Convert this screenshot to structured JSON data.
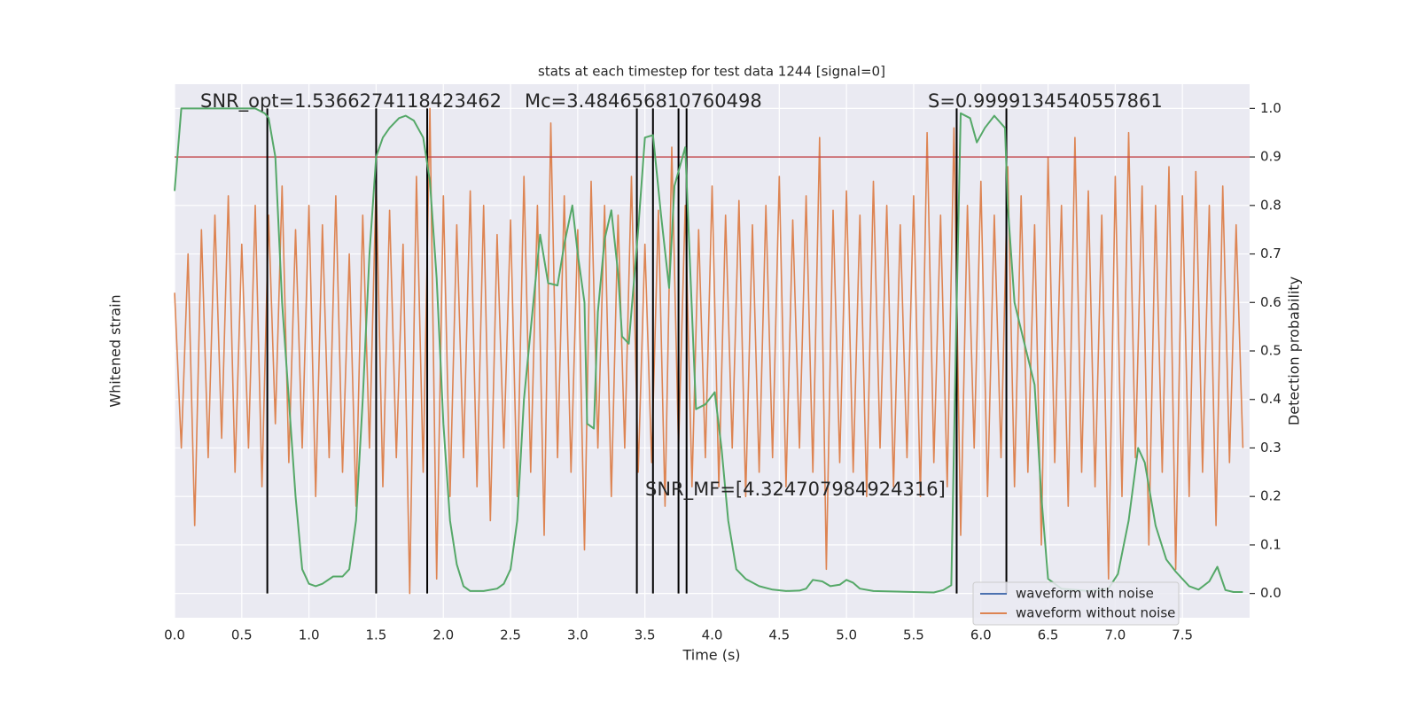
{
  "chart_data": {
    "type": "line",
    "title": "stats at each timestep for test data 1244 [signal=0]",
    "x_label": "Time (s)",
    "y_label": "Whitened strain",
    "y2_label": "Detection probability",
    "xlim": [
      0,
      8
    ],
    "ylim": [
      -0.05,
      1.05
    ],
    "xticks": [
      {
        "value": 0,
        "label": "0.0"
      },
      {
        "value": 0.5,
        "label": "0.5"
      },
      {
        "value": 1,
        "label": "1.0"
      },
      {
        "value": 1.5,
        "label": "1.5"
      },
      {
        "value": 2,
        "label": "2.0"
      },
      {
        "value": 2.5,
        "label": "2.5"
      },
      {
        "value": 3,
        "label": "3.0"
      },
      {
        "value": 3.5,
        "label": "3.5"
      },
      {
        "value": 4,
        "label": "4.0"
      },
      {
        "value": 4.5,
        "label": "4.5"
      },
      {
        "value": 5,
        "label": "5.0"
      },
      {
        "value": 5.5,
        "label": "5.5"
      },
      {
        "value": 6,
        "label": "6.0"
      },
      {
        "value": 6.5,
        "label": "6.5"
      },
      {
        "value": 7,
        "label": "7.0"
      },
      {
        "value": 7.5,
        "label": "7.5"
      }
    ],
    "yticks": [
      {
        "value": 0,
        "label": "0.0"
      },
      {
        "value": 0.1,
        "label": "0.1"
      },
      {
        "value": 0.2,
        "label": "0.2"
      },
      {
        "value": 0.3,
        "label": "0.3"
      },
      {
        "value": 0.4,
        "label": "0.4"
      },
      {
        "value": 0.5,
        "label": "0.5"
      },
      {
        "value": 0.6,
        "label": "0.6"
      },
      {
        "value": 0.7,
        "label": "0.7"
      },
      {
        "value": 0.8,
        "label": "0.8"
      },
      {
        "value": 0.9,
        "label": "0.9"
      },
      {
        "value": 1,
        "label": "1.0"
      }
    ],
    "grid": true,
    "legend": "lower right",
    "annotations": [
      "SNR_opt=1.5366274118423462",
      "Mc=3.484656810760498",
      "S=0.9999134540557861",
      "SNR_MF=[4.324707984924316]"
    ],
    "hline": 0.9,
    "hline_color": "#c44e52",
    "vlines": [
      0.69,
      1.5,
      1.88,
      3.44,
      3.56,
      3.75,
      3.81,
      5.82,
      6.19
    ],
    "vline_range": [
      0,
      1
    ],
    "vline_color": "#000000",
    "series": [
      {
        "name": "waveform with noise",
        "color": "#4c72b0",
        "x": [],
        "values": []
      },
      {
        "name": "waveform without noise",
        "color": "#dd8452",
        "x": [
          0,
          0.05,
          0.1,
          0.15,
          0.2,
          0.25,
          0.3,
          0.35,
          0.4,
          0.45,
          0.5,
          0.55,
          0.6,
          0.65,
          0.7,
          0.75,
          0.8,
          0.85,
          0.9,
          0.95,
          1,
          1.05,
          1.1,
          1.15,
          1.2,
          1.25,
          1.3,
          1.35,
          1.4,
          1.45,
          1.5,
          1.55,
          1.6,
          1.65,
          1.7,
          1.75,
          1.8,
          1.85,
          1.9,
          1.95,
          2,
          2.05,
          2.1,
          2.15,
          2.2,
          2.25,
          2.3,
          2.35,
          2.4,
          2.45,
          2.5,
          2.55,
          2.6,
          2.65,
          2.7,
          2.75,
          2.8,
          2.85,
          2.9,
          2.95,
          3,
          3.05,
          3.1,
          3.15,
          3.2,
          3.25,
          3.3,
          3.35,
          3.4,
          3.45,
          3.5,
          3.55,
          3.6,
          3.65,
          3.7,
          3.75,
          3.8,
          3.85,
          3.9,
          3.95,
          4,
          4.05,
          4.1,
          4.15,
          4.2,
          4.25,
          4.3,
          4.35,
          4.4,
          4.45,
          4.5,
          4.55,
          4.6,
          4.65,
          4.7,
          4.75,
          4.8,
          4.85,
          4.9,
          4.95,
          5,
          5.05,
          5.1,
          5.15,
          5.2,
          5.25,
          5.3,
          5.35,
          5.4,
          5.45,
          5.5,
          5.55,
          5.6,
          5.65,
          5.7,
          5.75,
          5.8,
          5.85,
          5.9,
          5.95,
          6,
          6.05,
          6.1,
          6.15,
          6.2,
          6.25,
          6.3,
          6.35,
          6.4,
          6.45,
          6.5,
          6.55,
          6.6,
          6.65,
          6.7,
          6.75,
          6.8,
          6.85,
          6.9,
          6.95,
          7,
          7.05,
          7.1,
          7.15,
          7.2,
          7.25,
          7.3,
          7.35,
          7.4,
          7.45,
          7.5,
          7.55,
          7.6,
          7.65,
          7.7,
          7.75,
          7.8,
          7.85,
          7.9,
          7.95
        ],
        "values": [
          0.62,
          0.3,
          0.7,
          0.14,
          0.75,
          0.28,
          0.78,
          0.32,
          0.82,
          0.25,
          0.72,
          0.3,
          0.8,
          0.22,
          0.78,
          0.35,
          0.84,
          0.27,
          0.75,
          0.3,
          0.8,
          0.2,
          0.76,
          0.28,
          0.82,
          0.25,
          0.7,
          0.18,
          0.78,
          0.3,
          0.85,
          0.22,
          0.79,
          0.28,
          0.72,
          0.0,
          0.86,
          0.25,
          1.0,
          0.03,
          0.82,
          0.2,
          0.76,
          0.28,
          0.83,
          0.22,
          0.8,
          0.15,
          0.74,
          0.3,
          0.77,
          0.2,
          0.86,
          0.25,
          0.8,
          0.12,
          0.97,
          0.28,
          0.82,
          0.25,
          0.75,
          0.09,
          0.85,
          0.3,
          0.8,
          0.2,
          0.78,
          0.3,
          0.86,
          0.25,
          0.72,
          0.27,
          0.79,
          0.18,
          0.92,
          0.3,
          0.8,
          0.22,
          0.75,
          0.28,
          0.84,
          0.22,
          0.78,
          0.3,
          0.81,
          0.2,
          0.76,
          0.25,
          0.8,
          0.28,
          0.86,
          0.22,
          0.77,
          0.3,
          0.82,
          0.25,
          0.94,
          0.05,
          0.79,
          0.27,
          0.83,
          0.25,
          0.78,
          0.2,
          0.85,
          0.3,
          0.8,
          0.22,
          0.76,
          0.28,
          0.82,
          0.2,
          0.95,
          0.27,
          0.78,
          0.22,
          0.96,
          0.12,
          0.8,
          0.3,
          0.85,
          0.2,
          0.78,
          0.28,
          0.88,
          0.22,
          0.82,
          0.25,
          0.76,
          0.1,
          0.9,
          0.27,
          0.8,
          0.18,
          0.94,
          0.25,
          0.83,
          0.22,
          0.78,
          0.03,
          0.86,
          0.2,
          0.95,
          0.28,
          0.84,
          0.1,
          0.8,
          0.25,
          0.88,
          0.05,
          0.82,
          0.2,
          0.87,
          0.25,
          0.8,
          0.14,
          0.84,
          0.27,
          0.76,
          0.3
        ]
      },
      {
        "color": "#55a868",
        "axis": "y2",
        "x": [
          0,
          0.05,
          0.1,
          0.3,
          0.5,
          0.6,
          0.67,
          0.7,
          0.75,
          0.8,
          0.85,
          0.9,
          0.95,
          1.0,
          1.05,
          1.1,
          1.18,
          1.25,
          1.3,
          1.35,
          1.4,
          1.45,
          1.5,
          1.55,
          1.6,
          1.67,
          1.72,
          1.78,
          1.85,
          1.9,
          1.95,
          2.0,
          2.05,
          2.1,
          2.15,
          2.2,
          2.3,
          2.4,
          2.45,
          2.5,
          2.55,
          2.6,
          2.67,
          2.72,
          2.78,
          2.85,
          2.9,
          2.96,
          3.0,
          3.05,
          3.07,
          3.12,
          3.15,
          3.2,
          3.25,
          3.3,
          3.33,
          3.38,
          3.45,
          3.5,
          3.56,
          3.62,
          3.68,
          3.72,
          3.8,
          3.84,
          3.88,
          3.95,
          4.02,
          4.07,
          4.12,
          4.18,
          4.25,
          4.35,
          4.45,
          4.55,
          4.65,
          4.7,
          4.75,
          4.82,
          4.88,
          4.95,
          5.0,
          5.05,
          5.1,
          5.2,
          5.5,
          5.65,
          5.72,
          5.78,
          5.82,
          5.85,
          5.92,
          5.97,
          6.03,
          6.1,
          6.18,
          6.2,
          6.25,
          6.32,
          6.4,
          6.45,
          6.5,
          6.6,
          6.8,
          6.95,
          7.02,
          7.1,
          7.17,
          7.22,
          7.3,
          7.38,
          7.45,
          7.55,
          7.62,
          7.7,
          7.76,
          7.82,
          7.88,
          7.95
        ],
        "values": [
          0.83,
          1.0,
          1.0,
          1.0,
          1.0,
          1.0,
          0.99,
          0.98,
          0.9,
          0.6,
          0.4,
          0.2,
          0.05,
          0.02,
          0.015,
          0.02,
          0.035,
          0.035,
          0.05,
          0.15,
          0.4,
          0.7,
          0.9,
          0.94,
          0.96,
          0.98,
          0.985,
          0.975,
          0.94,
          0.85,
          0.65,
          0.35,
          0.15,
          0.06,
          0.015,
          0.005,
          0.005,
          0.01,
          0.02,
          0.05,
          0.15,
          0.4,
          0.6,
          0.74,
          0.64,
          0.635,
          0.72,
          0.8,
          0.7,
          0.6,
          0.35,
          0.34,
          0.58,
          0.73,
          0.79,
          0.66,
          0.53,
          0.515,
          0.75,
          0.94,
          0.945,
          0.78,
          0.63,
          0.84,
          0.92,
          0.65,
          0.38,
          0.39,
          0.415,
          0.3,
          0.15,
          0.05,
          0.03,
          0.015,
          0.008,
          0.005,
          0.006,
          0.01,
          0.028,
          0.025,
          0.015,
          0.018,
          0.028,
          0.022,
          0.01,
          0.005,
          0.003,
          0.002,
          0.007,
          0.017,
          0.6,
          0.99,
          0.98,
          0.93,
          0.96,
          0.985,
          0.96,
          0.8,
          0.6,
          0.52,
          0.43,
          0.2,
          0.03,
          0.01,
          0.005,
          0.01,
          0.04,
          0.15,
          0.3,
          0.27,
          0.14,
          0.07,
          0.045,
          0.015,
          0.008,
          0.025,
          0.055,
          0.007,
          0.003,
          0.003
        ]
      }
    ]
  }
}
